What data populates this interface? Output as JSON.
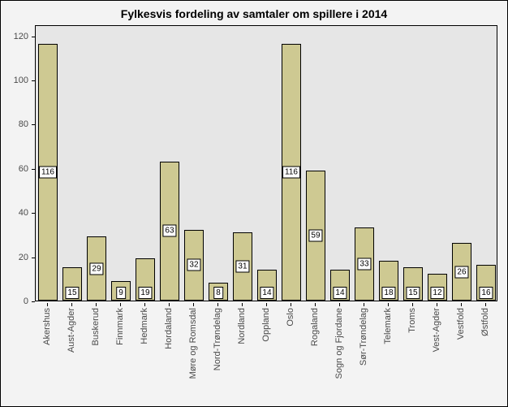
{
  "chart": {
    "type": "bar",
    "title": "Fylkesvis fordeling av samtaler om spillere i 2014",
    "title_fontsize": 14,
    "title_weight": "bold",
    "categories": [
      "Akershus",
      "Aust-Agder",
      "Buskerud",
      "Finnmark",
      "Hedmark",
      "Hordaland",
      "Møre og Romsdal",
      "Nord-Trøndelag",
      "Nordland",
      "Oppland",
      "Oslo",
      "Rogaland",
      "Sogn og Fjordane",
      "Sør-Trøndelag",
      "Telemark",
      "Troms",
      "Vest-Agder",
      "Vestfold",
      "Østfold"
    ],
    "values": [
      116,
      15,
      29,
      9,
      19,
      63,
      32,
      8,
      31,
      14,
      116,
      59,
      14,
      33,
      18,
      15,
      12,
      26,
      16
    ],
    "bar_color": "#cec992",
    "bar_border_color": "#000000",
    "background_color": "#f3f3f3",
    "plot_background_color": "#e6e6e6",
    "ylim": [
      0,
      125
    ],
    "yticks": [
      0,
      20,
      40,
      60,
      80,
      100,
      120
    ],
    "label_fontsize": 11,
    "bar_width_ratio": 0.78,
    "value_label_background": "#ffffff",
    "value_label_border": "#000000",
    "value_label_fontsize": 10,
    "axis_color": "#000000",
    "tick_label_color": "#4a4a4a"
  }
}
